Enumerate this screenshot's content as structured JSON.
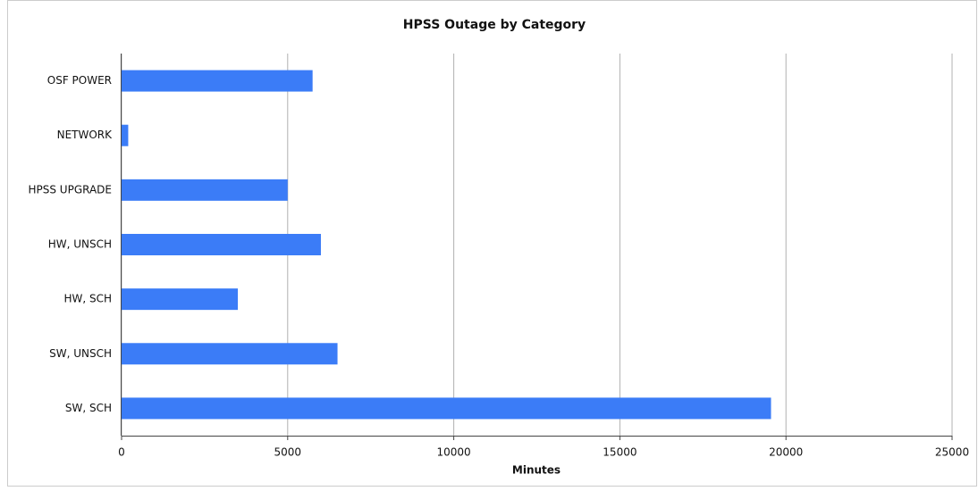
{
  "chart_data": {
    "type": "bar",
    "orientation": "horizontal",
    "title": "HPSS Outage by Category",
    "x_label": "Minutes",
    "categories": [
      "OSF POWER",
      "NETWORK",
      "HPSS UPGRADE",
      "HW, UNSCH",
      "HW, SCH",
      "SW, UNSCH",
      "SW, SCH"
    ],
    "values": [
      5750,
      200,
      5000,
      6000,
      3500,
      6500,
      19550
    ],
    "color": "#3b7cf7",
    "xlim": [
      0,
      25000
    ],
    "xticks": [
      0,
      5000,
      10000,
      15000,
      20000,
      25000
    ],
    "grid": true
  }
}
